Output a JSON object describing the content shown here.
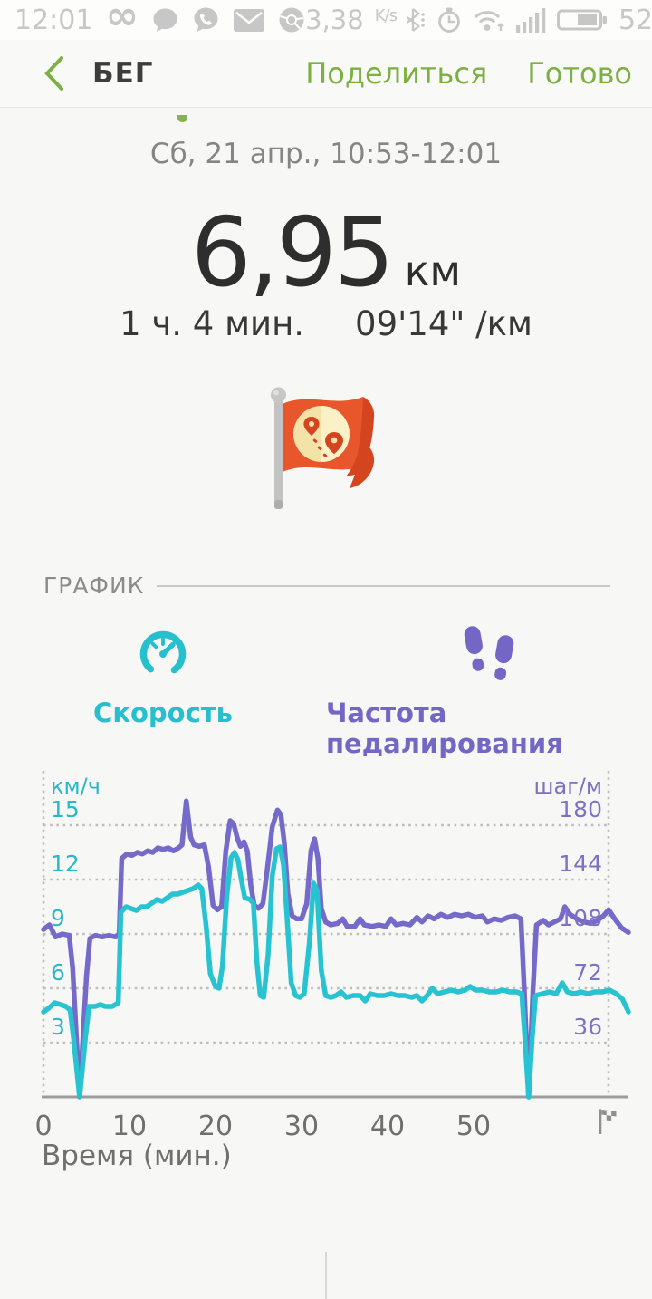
{
  "status_bar": {
    "time": "12:01",
    "network_speed": "3,38",
    "network_speed_unit": "K/s",
    "battery_percent": "52"
  },
  "header": {
    "title": "БЕГ",
    "share_label": "Поделиться",
    "done_label": "Готово"
  },
  "summary": {
    "date_range": "Сб, 21 апр., 10:53-12:01",
    "distance_value": "6,95",
    "distance_unit": "км",
    "duration": "1 ч. 4 мин.",
    "pace": "09'14\" /км"
  },
  "chart_section": {
    "section_title": "ГРАФИК",
    "tabs": [
      {
        "label": "Скорость",
        "color": "#26bfce",
        "icon": "speedometer-icon"
      },
      {
        "label": "Частота педалирования",
        "color": "#7466c5",
        "icon": "footprints-icon"
      }
    ]
  },
  "chart_data": {
    "type": "line",
    "xlabel": "Время (мин.)",
    "x_ticks": [
      0,
      10,
      20,
      30,
      40,
      50
    ],
    "x_end_marker": "finish-flag-icon",
    "xlim": [
      0,
      68
    ],
    "grid": "dotted",
    "left_axis": {
      "label": "км/ч",
      "ticks": [
        15,
        12,
        9,
        6,
        3
      ],
      "range": [
        0,
        18
      ],
      "color": "#29b8c8"
    },
    "right_axis": {
      "label": "шаг/м",
      "ticks": [
        180,
        144,
        108,
        72,
        36
      ],
      "range": [
        0,
        216
      ],
      "color": "#7e70c3"
    },
    "series": [
      {
        "name": "Частота педалирования",
        "axis": "right",
        "color": "#7569c9",
        "points": [
          [
            0,
            111
          ],
          [
            0.7,
            114
          ],
          [
            1.4,
            106
          ],
          [
            2.2,
            108
          ],
          [
            3,
            107
          ],
          [
            3.4,
            85
          ],
          [
            4.2,
            0
          ],
          [
            5,
            80
          ],
          [
            5.4,
            105
          ],
          [
            6,
            107
          ],
          [
            6.8,
            106
          ],
          [
            7.6,
            107
          ],
          [
            8.4,
            106
          ],
          [
            8.8,
            108
          ],
          [
            9.1,
            158
          ],
          [
            9.7,
            161
          ],
          [
            10.3,
            160
          ],
          [
            10.9,
            162
          ],
          [
            11.5,
            161
          ],
          [
            12.1,
            163
          ],
          [
            12.7,
            162
          ],
          [
            13.3,
            165
          ],
          [
            13.9,
            164
          ],
          [
            14.5,
            165
          ],
          [
            15.1,
            163
          ],
          [
            15.7,
            165
          ],
          [
            16.1,
            167
          ],
          [
            16.6,
            196
          ],
          [
            17.1,
            172
          ],
          [
            17.5,
            167
          ],
          [
            18.1,
            166
          ],
          [
            18.7,
            167
          ],
          [
            19.2,
            152
          ],
          [
            19.7,
            127
          ],
          [
            20.2,
            124
          ],
          [
            20.7,
            126
          ],
          [
            21.2,
            163
          ],
          [
            21.7,
            183
          ],
          [
            22.1,
            181
          ],
          [
            22.5,
            172
          ],
          [
            22.9,
            166
          ],
          [
            23.3,
            169
          ],
          [
            23.7,
            163
          ],
          [
            24.1,
            140
          ],
          [
            24.5,
            127
          ],
          [
            25,
            125
          ],
          [
            25.5,
            128
          ],
          [
            26,
            150
          ],
          [
            26.6,
            179
          ],
          [
            27.2,
            190
          ],
          [
            27.6,
            187
          ],
          [
            28,
            168
          ],
          [
            28.4,
            135
          ],
          [
            28.9,
            120
          ],
          [
            29.4,
            118
          ],
          [
            30,
            118
          ],
          [
            30.6,
            128
          ],
          [
            31.1,
            163
          ],
          [
            31.5,
            171
          ],
          [
            31.9,
            158
          ],
          [
            32.3,
            125
          ],
          [
            32.8,
            116
          ],
          [
            33.4,
            114
          ],
          [
            34.2,
            115
          ],
          [
            34.8,
            118
          ],
          [
            35.3,
            113
          ],
          [
            36.2,
            113
          ],
          [
            36.8,
            118
          ],
          [
            37.3,
            114
          ],
          [
            38.2,
            113
          ],
          [
            39,
            114
          ],
          [
            39.8,
            113
          ],
          [
            40.4,
            118
          ],
          [
            41,
            114
          ],
          [
            41.8,
            115
          ],
          [
            42.6,
            114
          ],
          [
            43.4,
            119
          ],
          [
            44,
            116
          ],
          [
            44.7,
            120
          ],
          [
            45.4,
            118
          ],
          [
            46.2,
            121
          ],
          [
            47,
            119
          ],
          [
            47.8,
            121
          ],
          [
            48.6,
            120
          ],
          [
            49.4,
            121
          ],
          [
            50.2,
            119
          ],
          [
            51,
            120
          ],
          [
            51.6,
            116
          ],
          [
            52.4,
            118
          ],
          [
            53.2,
            117
          ],
          [
            54,
            119
          ],
          [
            54.8,
            120
          ],
          [
            55.5,
            118
          ],
          [
            55.9,
            70
          ],
          [
            56.4,
            0
          ],
          [
            56.9,
            70
          ],
          [
            57.3,
            114
          ],
          [
            58.1,
            117
          ],
          [
            58.7,
            114
          ],
          [
            59.4,
            116
          ],
          [
            60.1,
            118
          ],
          [
            60.6,
            126
          ],
          [
            61.2,
            121
          ],
          [
            62,
            118
          ],
          [
            62.8,
            116
          ],
          [
            63.6,
            115
          ],
          [
            64.4,
            117
          ],
          [
            65.1,
            120
          ],
          [
            65.7,
            124
          ],
          [
            66.4,
            118
          ],
          [
            67.2,
            112
          ],
          [
            68,
            109
          ]
        ]
      },
      {
        "name": "Скорость",
        "axis": "left",
        "color": "#28c3d1",
        "points": [
          [
            0,
            4.7
          ],
          [
            0.6,
            4.9
          ],
          [
            1.3,
            5.2
          ],
          [
            2,
            5.1
          ],
          [
            2.6,
            5.0
          ],
          [
            3.1,
            4.8
          ],
          [
            3.5,
            3.2
          ],
          [
            4.2,
            0
          ],
          [
            4.9,
            3.4
          ],
          [
            5.3,
            5.0
          ],
          [
            6,
            5.0
          ],
          [
            6.6,
            5.1
          ],
          [
            7.2,
            5.0
          ],
          [
            8,
            5.0
          ],
          [
            8.7,
            5.2
          ],
          [
            9,
            10.2
          ],
          [
            9.6,
            10.5
          ],
          [
            10.2,
            10.4
          ],
          [
            10.8,
            10.3
          ],
          [
            11.4,
            10.5
          ],
          [
            12,
            10.5
          ],
          [
            12.6,
            10.7
          ],
          [
            13.2,
            10.9
          ],
          [
            13.8,
            10.8
          ],
          [
            14.4,
            11.0
          ],
          [
            15,
            11.2
          ],
          [
            15.6,
            11.2
          ],
          [
            16.2,
            11.3
          ],
          [
            16.8,
            11.4
          ],
          [
            17.4,
            11.5
          ],
          [
            18,
            11.7
          ],
          [
            18.4,
            11.5
          ],
          [
            18.9,
            9.5
          ],
          [
            19.4,
            6.8
          ],
          [
            20,
            6.1
          ],
          [
            20.4,
            6.0
          ],
          [
            20.8,
            7.2
          ],
          [
            21.3,
            11.0
          ],
          [
            21.8,
            13.2
          ],
          [
            22.2,
            13.5
          ],
          [
            22.6,
            13.1
          ],
          [
            23,
            12.0
          ],
          [
            23.4,
            11.0
          ],
          [
            24,
            10.9
          ],
          [
            24.4,
            10.7
          ],
          [
            24.8,
            7.5
          ],
          [
            25.2,
            5.6
          ],
          [
            25.6,
            5.5
          ],
          [
            26.1,
            7.8
          ],
          [
            26.6,
            12.2
          ],
          [
            27.1,
            13.7
          ],
          [
            27.5,
            13.8
          ],
          [
            27.9,
            12.8
          ],
          [
            28.3,
            10.0
          ],
          [
            28.8,
            6.3
          ],
          [
            29.3,
            5.6
          ],
          [
            29.8,
            5.5
          ],
          [
            30.3,
            5.7
          ],
          [
            30.9,
            8.5
          ],
          [
            31.4,
            11.8
          ],
          [
            31.8,
            11.4
          ],
          [
            32.3,
            7.0
          ],
          [
            32.8,
            5.6
          ],
          [
            33.4,
            5.5
          ],
          [
            34,
            5.6
          ],
          [
            34.6,
            5.8
          ],
          [
            35.2,
            5.5
          ],
          [
            36,
            5.6
          ],
          [
            36.8,
            5.6
          ],
          [
            37.4,
            5.3
          ],
          [
            38,
            5.7
          ],
          [
            38.8,
            5.6
          ],
          [
            39.6,
            5.6
          ],
          [
            40.4,
            5.7
          ],
          [
            41.2,
            5.6
          ],
          [
            42,
            5.6
          ],
          [
            42.8,
            5.5
          ],
          [
            43.4,
            5.6
          ],
          [
            44,
            5.3
          ],
          [
            44.6,
            5.6
          ],
          [
            45.2,
            6.0
          ],
          [
            45.8,
            5.7
          ],
          [
            46.6,
            5.8
          ],
          [
            47.4,
            5.9
          ],
          [
            48.2,
            5.8
          ],
          [
            49,
            5.9
          ],
          [
            49.6,
            6.1
          ],
          [
            50.2,
            5.9
          ],
          [
            51,
            5.9
          ],
          [
            51.8,
            5.8
          ],
          [
            52.6,
            5.8
          ],
          [
            53.4,
            5.9
          ],
          [
            54.2,
            5.8
          ],
          [
            55,
            5.8
          ],
          [
            55.6,
            5.7
          ],
          [
            56,
            3.0
          ],
          [
            56.4,
            0
          ],
          [
            56.8,
            3.2
          ],
          [
            57.2,
            5.6
          ],
          [
            58,
            5.7
          ],
          [
            58.8,
            5.8
          ],
          [
            59.6,
            5.7
          ],
          [
            60.3,
            6.3
          ],
          [
            60.9,
            5.8
          ],
          [
            61.7,
            5.7
          ],
          [
            62.5,
            5.8
          ],
          [
            63.3,
            5.7
          ],
          [
            64.1,
            5.8
          ],
          [
            65,
            5.8
          ],
          [
            65.8,
            5.9
          ],
          [
            66.6,
            5.7
          ],
          [
            67.3,
            5.4
          ],
          [
            68,
            4.7
          ]
        ]
      }
    ]
  }
}
